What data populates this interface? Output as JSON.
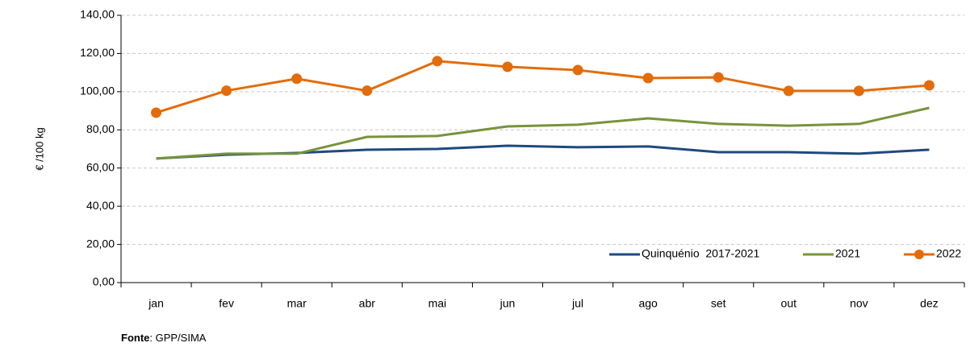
{
  "chart_data": {
    "type": "line",
    "y_label": "€ /100 kg",
    "categories": [
      "jan",
      "fev",
      "mar",
      "abr",
      "mai",
      "jun",
      "jul",
      "ago",
      "set",
      "out",
      "nov",
      "dez"
    ],
    "series": [
      {
        "name": "Quinquénio  2017-2021",
        "color": "#1f497d",
        "marker": false,
        "values": [
          65.0,
          67.0,
          67.9,
          69.6,
          70.0,
          71.7,
          70.9,
          71.3,
          68.3,
          68.3,
          67.5,
          69.6
        ]
      },
      {
        "name": "2021",
        "color": "#77933c",
        "marker": false,
        "values": [
          65.0,
          67.5,
          67.5,
          76.3,
          76.8,
          81.8,
          82.7,
          86.0,
          83.1,
          82.2,
          83.1,
          91.5
        ]
      },
      {
        "name": "2022",
        "color": "#e36c09",
        "marker": true,
        "values": [
          89.0,
          100.5,
          106.8,
          100.5,
          116.0,
          113.0,
          111.3,
          107.1,
          107.5,
          100.4,
          100.4,
          103.3
        ]
      }
    ],
    "ylim": [
      0,
      140
    ],
    "yticks": [
      {
        "value": 0,
        "label": "0,00"
      },
      {
        "value": 20,
        "label": "20,00"
      },
      {
        "value": 40,
        "label": "40,00"
      },
      {
        "value": 60,
        "label": "60,00"
      },
      {
        "value": 80,
        "label": "80,00"
      },
      {
        "value": 100,
        "label": "100,00"
      },
      {
        "value": 120,
        "label": "120,00"
      },
      {
        "value": 140,
        "label": "140,00"
      }
    ],
    "grid": true,
    "legend": "bottom-right",
    "source_label": "Fonte",
    "source_text": ": GPP/SIMA"
  }
}
